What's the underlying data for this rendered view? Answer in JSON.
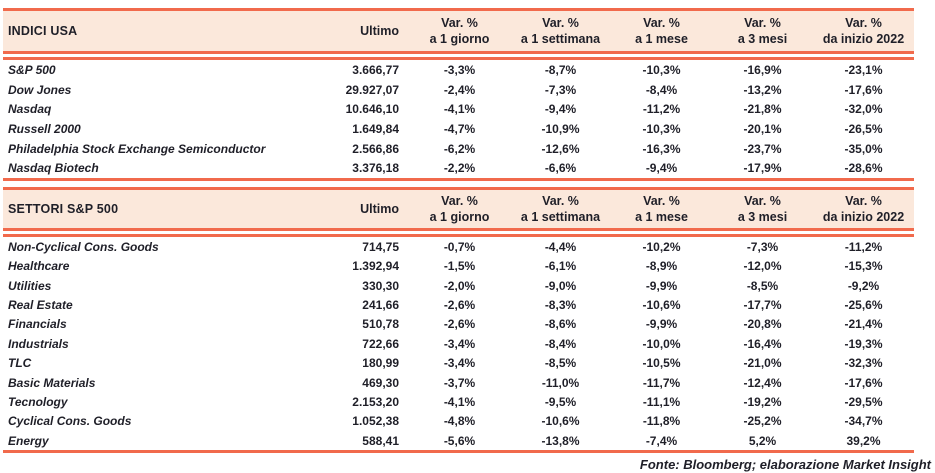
{
  "colors": {
    "accent": "#F16A4C",
    "header_bg": "#FBE8DB",
    "text": "#1F1F28"
  },
  "columns": {
    "ultimo": "Ultimo",
    "var_label": "Var. %",
    "var_periods": [
      "a 1 giorno",
      "a 1 settimana",
      "a 1 mese",
      "a 3 mesi",
      "da inizio 2022"
    ]
  },
  "sections": [
    {
      "title": "INDICI USA",
      "rows": [
        {
          "name": "S&P 500",
          "ultimo": "3.666,77",
          "vars": [
            "-3,3%",
            "-8,7%",
            "-10,3%",
            "-16,9%",
            "-23,1%"
          ]
        },
        {
          "name": "Dow Jones",
          "ultimo": "29.927,07",
          "vars": [
            "-2,4%",
            "-7,3%",
            "-8,4%",
            "-13,2%",
            "-17,6%"
          ]
        },
        {
          "name": "Nasdaq",
          "ultimo": "10.646,10",
          "vars": [
            "-4,1%",
            "-9,4%",
            "-11,2%",
            "-21,8%",
            "-32,0%"
          ]
        },
        {
          "name": "Russell 2000",
          "ultimo": "1.649,84",
          "vars": [
            "-4,7%",
            "-10,9%",
            "-10,3%",
            "-20,1%",
            "-26,5%"
          ]
        },
        {
          "name": "Philadelphia Stock Exchange Semiconductor",
          "ultimo": "2.566,86",
          "vars": [
            "-6,2%",
            "-12,6%",
            "-16,3%",
            "-23,7%",
            "-35,0%"
          ]
        },
        {
          "name": "Nasdaq Biotech",
          "ultimo": "3.376,18",
          "vars": [
            "-2,2%",
            "-6,6%",
            "-9,4%",
            "-17,9%",
            "-28,6%"
          ]
        }
      ]
    },
    {
      "title": "SETTORI S&P 500",
      "rows": [
        {
          "name": "Non-Cyclical Cons. Goods",
          "ultimo": "714,75",
          "vars": [
            "-0,7%",
            "-4,4%",
            "-10,2%",
            "-7,3%",
            "-11,2%"
          ]
        },
        {
          "name": "Healthcare",
          "ultimo": "1.392,94",
          "vars": [
            "-1,5%",
            "-6,1%",
            "-8,9%",
            "-12,0%",
            "-15,3%"
          ]
        },
        {
          "name": "Utilities",
          "ultimo": "330,30",
          "vars": [
            "-2,0%",
            "-9,0%",
            "-9,9%",
            "-8,5%",
            "-9,2%"
          ]
        },
        {
          "name": "Real Estate",
          "ultimo": "241,66",
          "vars": [
            "-2,6%",
            "-8,3%",
            "-10,6%",
            "-17,7%",
            "-25,6%"
          ]
        },
        {
          "name": "Financials",
          "ultimo": "510,78",
          "vars": [
            "-2,6%",
            "-8,6%",
            "-9,9%",
            "-20,8%",
            "-21,4%"
          ]
        },
        {
          "name": "Industrials",
          "ultimo": "722,66",
          "vars": [
            "-3,4%",
            "-8,4%",
            "-10,0%",
            "-16,4%",
            "-19,3%"
          ]
        },
        {
          "name": "TLC",
          "ultimo": "180,99",
          "vars": [
            "-3,4%",
            "-8,5%",
            "-10,5%",
            "-21,0%",
            "-32,3%"
          ]
        },
        {
          "name": "Basic Materials",
          "ultimo": "469,30",
          "vars": [
            "-3,7%",
            "-11,0%",
            "-11,7%",
            "-12,4%",
            "-17,6%"
          ]
        },
        {
          "name": "Tecnology",
          "ultimo": "2.153,20",
          "vars": [
            "-4,1%",
            "-9,5%",
            "-11,1%",
            "-19,2%",
            "-29,5%"
          ]
        },
        {
          "name": "Cyclical Cons. Goods",
          "ultimo": "1.052,38",
          "vars": [
            "-4,8%",
            "-10,6%",
            "-11,8%",
            "-25,2%",
            "-34,7%"
          ]
        },
        {
          "name": "Energy",
          "ultimo": "588,41",
          "vars": [
            "-5,6%",
            "-13,8%",
            "-7,4%",
            "5,2%",
            "39,2%"
          ]
        }
      ]
    }
  ],
  "footer": "Fonte: Bloomberg; elaborazione Market Insight",
  "chart_data": [
    {
      "type": "table",
      "title": "INDICI USA",
      "columns": [
        "Ultimo",
        "Var. % a 1 giorno",
        "Var. % a 1 settimana",
        "Var. % a 1 mese",
        "Var. % a 3 mesi",
        "Var. % da inizio 2022"
      ],
      "rows": [
        [
          "S&P 500",
          "3.666,77",
          "-3,3%",
          "-8,7%",
          "-10,3%",
          "-16,9%",
          "-23,1%"
        ],
        [
          "Dow Jones",
          "29.927,07",
          "-2,4%",
          "-7,3%",
          "-8,4%",
          "-13,2%",
          "-17,6%"
        ],
        [
          "Nasdaq",
          "10.646,10",
          "-4,1%",
          "-9,4%",
          "-11,2%",
          "-21,8%",
          "-32,0%"
        ],
        [
          "Russell 2000",
          "1.649,84",
          "-4,7%",
          "-10,9%",
          "-10,3%",
          "-20,1%",
          "-26,5%"
        ],
        [
          "Philadelphia Stock Exchange Semiconductor",
          "2.566,86",
          "-6,2%",
          "-12,6%",
          "-16,3%",
          "-23,7%",
          "-35,0%"
        ],
        [
          "Nasdaq Biotech",
          "3.376,18",
          "-2,2%",
          "-6,6%",
          "-9,4%",
          "-17,9%",
          "-28,6%"
        ]
      ]
    },
    {
      "type": "table",
      "title": "SETTORI S&P 500",
      "columns": [
        "Ultimo",
        "Var. % a 1 giorno",
        "Var. % a 1 settimana",
        "Var. % a 1 mese",
        "Var. % a 3 mesi",
        "Var. % da inizio 2022"
      ],
      "rows": [
        [
          "Non-Cyclical Cons. Goods",
          "714,75",
          "-0,7%",
          "-4,4%",
          "-10,2%",
          "-7,3%",
          "-11,2%"
        ],
        [
          "Healthcare",
          "1.392,94",
          "-1,5%",
          "-6,1%",
          "-8,9%",
          "-12,0%",
          "-15,3%"
        ],
        [
          "Utilities",
          "330,30",
          "-2,0%",
          "-9,0%",
          "-9,9%",
          "-8,5%",
          "-9,2%"
        ],
        [
          "Real Estate",
          "241,66",
          "-2,6%",
          "-8,3%",
          "-10,6%",
          "-17,7%",
          "-25,6%"
        ],
        [
          "Financials",
          "510,78",
          "-2,6%",
          "-8,6%",
          "-9,9%",
          "-20,8%",
          "-21,4%"
        ],
        [
          "Industrials",
          "722,66",
          "-3,4%",
          "-8,4%",
          "-10,0%",
          "-16,4%",
          "-19,3%"
        ],
        [
          "TLC",
          "180,99",
          "-3,4%",
          "-8,5%",
          "-10,5%",
          "-21,0%",
          "-32,3%"
        ],
        [
          "Basic Materials",
          "469,30",
          "-3,7%",
          "-11,0%",
          "-11,7%",
          "-12,4%",
          "-17,6%"
        ],
        [
          "Tecnology",
          "2.153,20",
          "-4,1%",
          "-9,5%",
          "-11,1%",
          "-19,2%",
          "-29,5%"
        ],
        [
          "Cyclical Cons. Goods",
          "1.052,38",
          "-4,8%",
          "-10,6%",
          "-11,8%",
          "-25,2%",
          "-34,7%"
        ],
        [
          "Energy",
          "588,41",
          "-5,6%",
          "-13,8%",
          "-7,4%",
          "5,2%",
          "39,2%"
        ]
      ]
    }
  ]
}
